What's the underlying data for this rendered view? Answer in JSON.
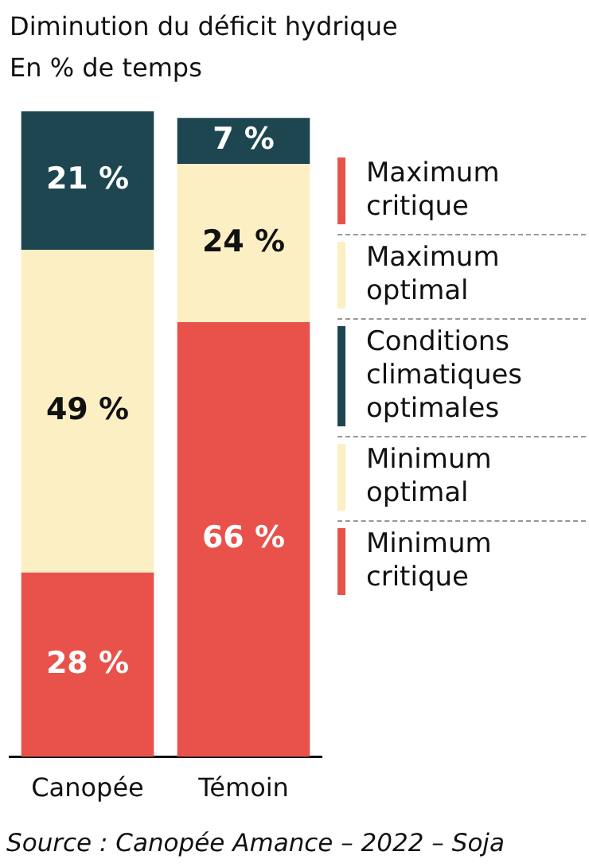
{
  "chart_data": {
    "type": "bar",
    "title": "Diminution du déficit hydrique",
    "subtitle": "En % de temps",
    "stacked": true,
    "categories": [
      "Canopée",
      "Témoin"
    ],
    "series": [
      {
        "color": "#e8524a",
        "values": [
          28,
          66
        ],
        "value_labels": [
          "28 %",
          "66 %"
        ]
      },
      {
        "color": "#fdefc4",
        "values": [
          49,
          24
        ],
        "value_labels": [
          "49 %",
          "24 %"
        ]
      },
      {
        "color": "#1d4651",
        "values": [
          21,
          7
        ],
        "value_labels": [
          "21 %",
          "7 %"
        ]
      }
    ],
    "annotations": [
      "Maximum critique",
      "Maximum optimal",
      "Conditions climatiques optimales",
      "Minimum optimal",
      "Minimum critique",
      "Source : Canopée Amance – 2022 – Soja"
    ],
    "grid": false,
    "legend": false
  }
}
